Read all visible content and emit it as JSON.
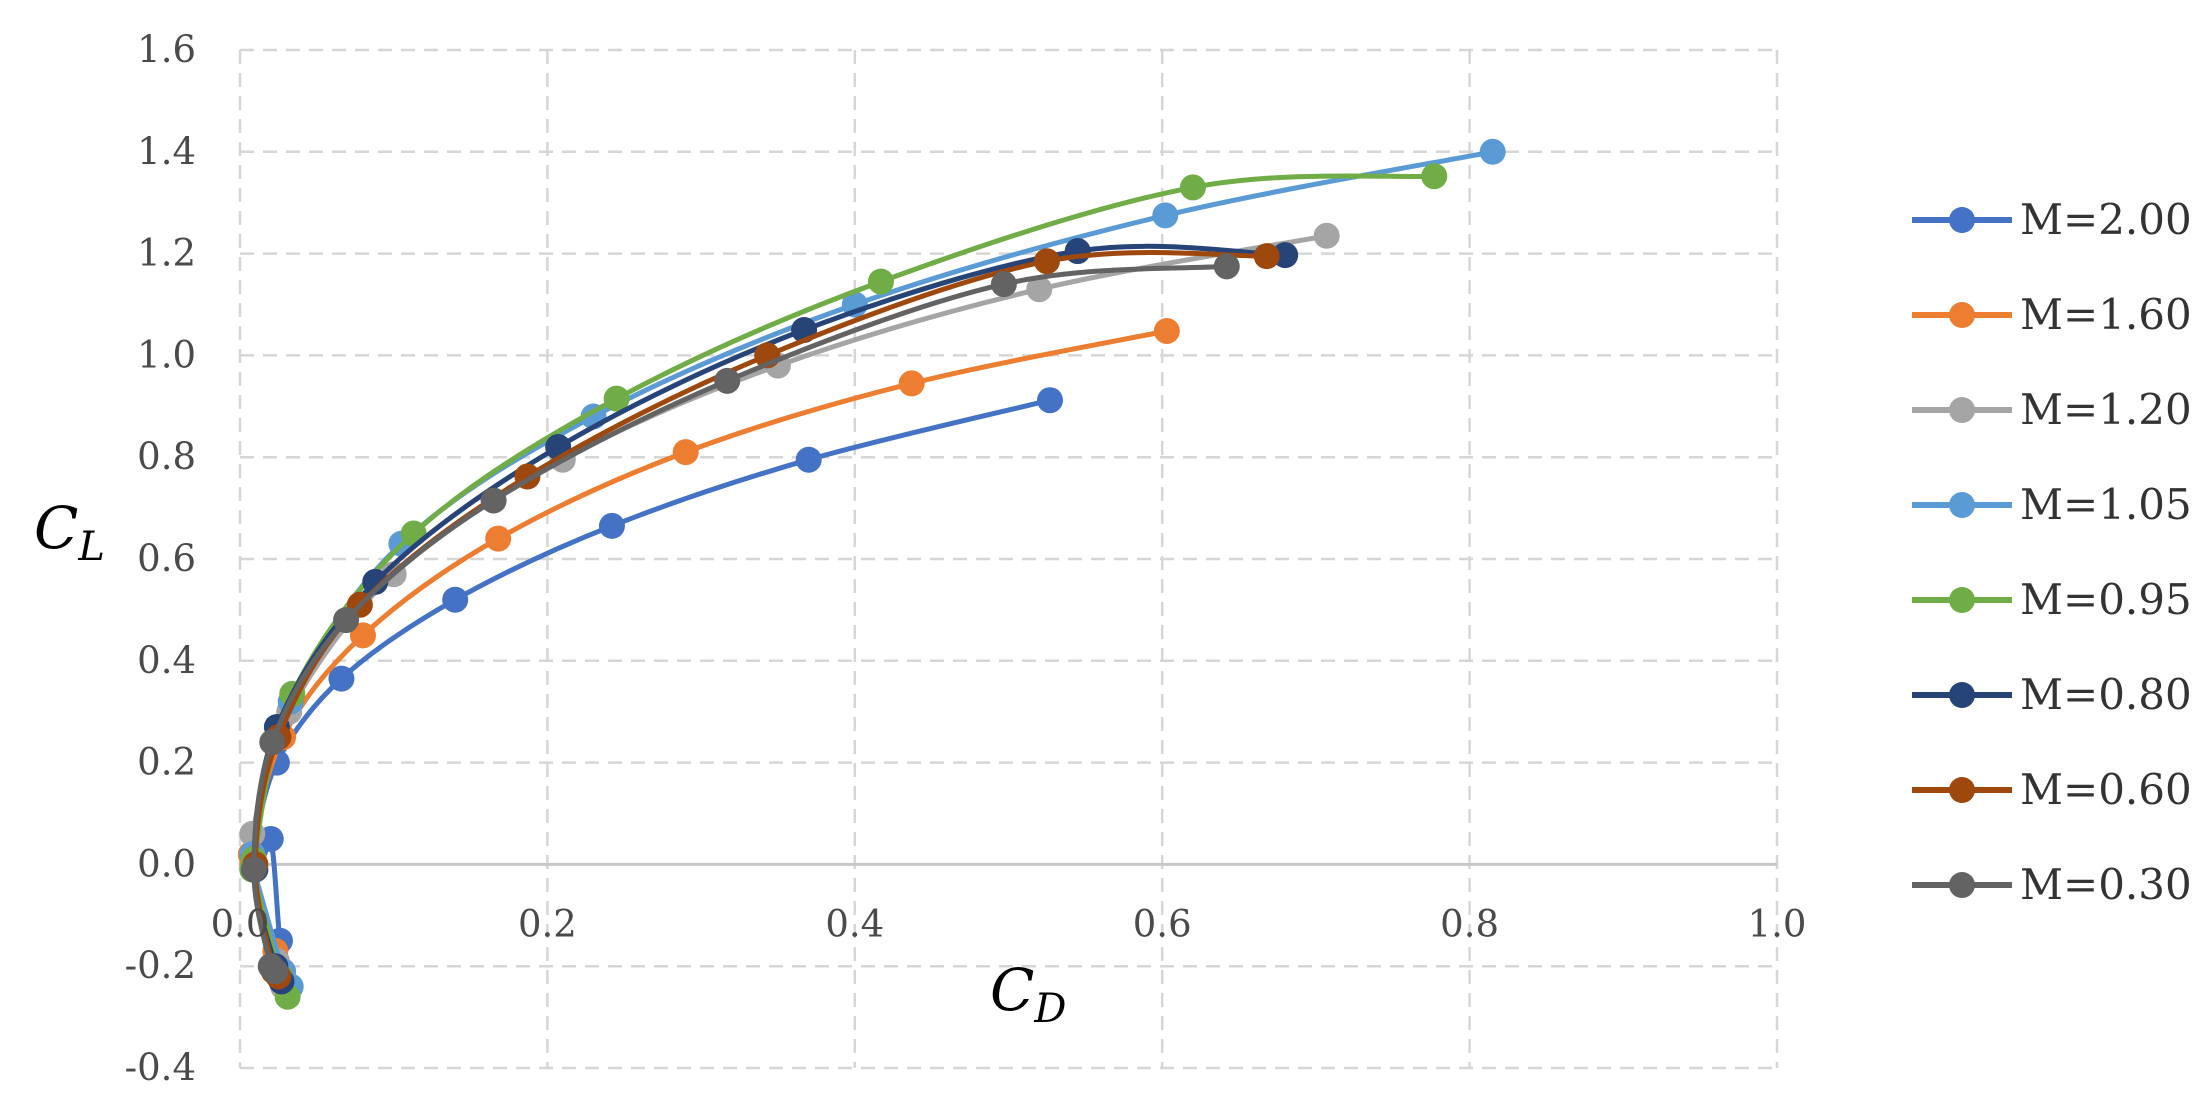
{
  "chart_data": {
    "type": "scatter",
    "xlabel": "C",
    "xlabel_sub": "D",
    "ylabel": "C",
    "ylabel_sub": "L",
    "xlim": [
      0,
      1.0
    ],
    "ylim": [
      -0.4,
      1.6
    ],
    "x_ticks": [
      "0.0",
      "0.2",
      "0.4",
      "0.6",
      "0.8",
      "1.0"
    ],
    "y_ticks": [
      "1.6",
      "1.4",
      "1.2",
      "1.0",
      "0.8",
      "0.6",
      "0.4",
      "0.2",
      "0.0",
      "-0.2",
      "-0.4"
    ],
    "x_tick_values": [
      0,
      0.2,
      0.4,
      0.6,
      0.8,
      1.0
    ],
    "y_tick_values": [
      1.6,
      1.4,
      1.2,
      1.0,
      0.8,
      0.6,
      0.4,
      0.2,
      0.0,
      -0.2,
      -0.4
    ],
    "grid": true,
    "legend_position": "right",
    "series": [
      {
        "name": "M=2.00",
        "color": "#4472c4",
        "x": [
          0.032,
          0.026,
          0.02,
          0.01,
          0.024,
          0.066,
          0.14,
          0.242,
          0.37,
          0.527
        ],
        "y": [
          -0.24,
          -0.15,
          0.05,
          0.03,
          0.2,
          0.365,
          0.52,
          0.665,
          0.795,
          0.912
        ]
      },
      {
        "name": "M=1.60",
        "color": "#ed7d31",
        "x": [
          0.028,
          0.023,
          0.008,
          0.007,
          0.028,
          0.08,
          0.168,
          0.29,
          0.437,
          0.603
        ],
        "y": [
          -0.21,
          -0.17,
          0.0,
          0.02,
          0.25,
          0.45,
          0.64,
          0.81,
          0.945,
          1.048
        ]
      },
      {
        "name": "M=1.20",
        "color": "#a5a5a5",
        "x": [
          0.028,
          0.024,
          0.008,
          0.008,
          0.032,
          0.1,
          0.21,
          0.35,
          0.52,
          0.707
        ],
        "y": [
          -0.24,
          -0.19,
          -0.01,
          0.06,
          0.3,
          0.57,
          0.795,
          0.98,
          1.13,
          1.235
        ]
      },
      {
        "name": "M=1.05",
        "color": "#5b9bd5",
        "x": [
          0.033,
          0.028,
          0.009,
          0.008,
          0.033,
          0.105,
          0.23,
          0.4,
          0.602,
          0.815
        ],
        "y": [
          -0.24,
          -0.21,
          -0.01,
          0.02,
          0.32,
          0.63,
          0.88,
          1.1,
          1.275,
          1.4
        ]
      },
      {
        "name": "M=0.95",
        "color": "#70ad47",
        "x": [
          0.031,
          0.026,
          0.008,
          0.009,
          0.034,
          0.113,
          0.245,
          0.417,
          0.62,
          0.777
        ],
        "y": [
          -0.26,
          -0.22,
          -0.01,
          0.01,
          0.335,
          0.65,
          0.915,
          1.145,
          1.33,
          1.352
        ]
      },
      {
        "name": "M=0.80",
        "color": "#264478",
        "x": [
          0.027,
          0.023,
          0.01,
          0.024,
          0.088,
          0.207,
          0.367,
          0.545,
          0.68
        ],
        "y": [
          -0.23,
          -0.2,
          -0.01,
          0.27,
          0.555,
          0.82,
          1.05,
          1.205,
          1.197
        ]
      },
      {
        "name": "M=0.60",
        "color": "#9e480e",
        "x": [
          0.025,
          0.022,
          0.01,
          0.025,
          0.078,
          0.187,
          0.343,
          0.525,
          0.668
        ],
        "y": [
          -0.22,
          -0.21,
          0.0,
          0.25,
          0.51,
          0.762,
          1.0,
          1.185,
          1.195
        ]
      },
      {
        "name": "M=0.30",
        "color": "#636363",
        "x": [
          0.023,
          0.02,
          0.009,
          0.021,
          0.069,
          0.165,
          0.317,
          0.497,
          0.642
        ],
        "y": [
          -0.21,
          -0.2,
          -0.01,
          0.24,
          0.48,
          0.715,
          0.95,
          1.14,
          1.175
        ]
      }
    ]
  }
}
